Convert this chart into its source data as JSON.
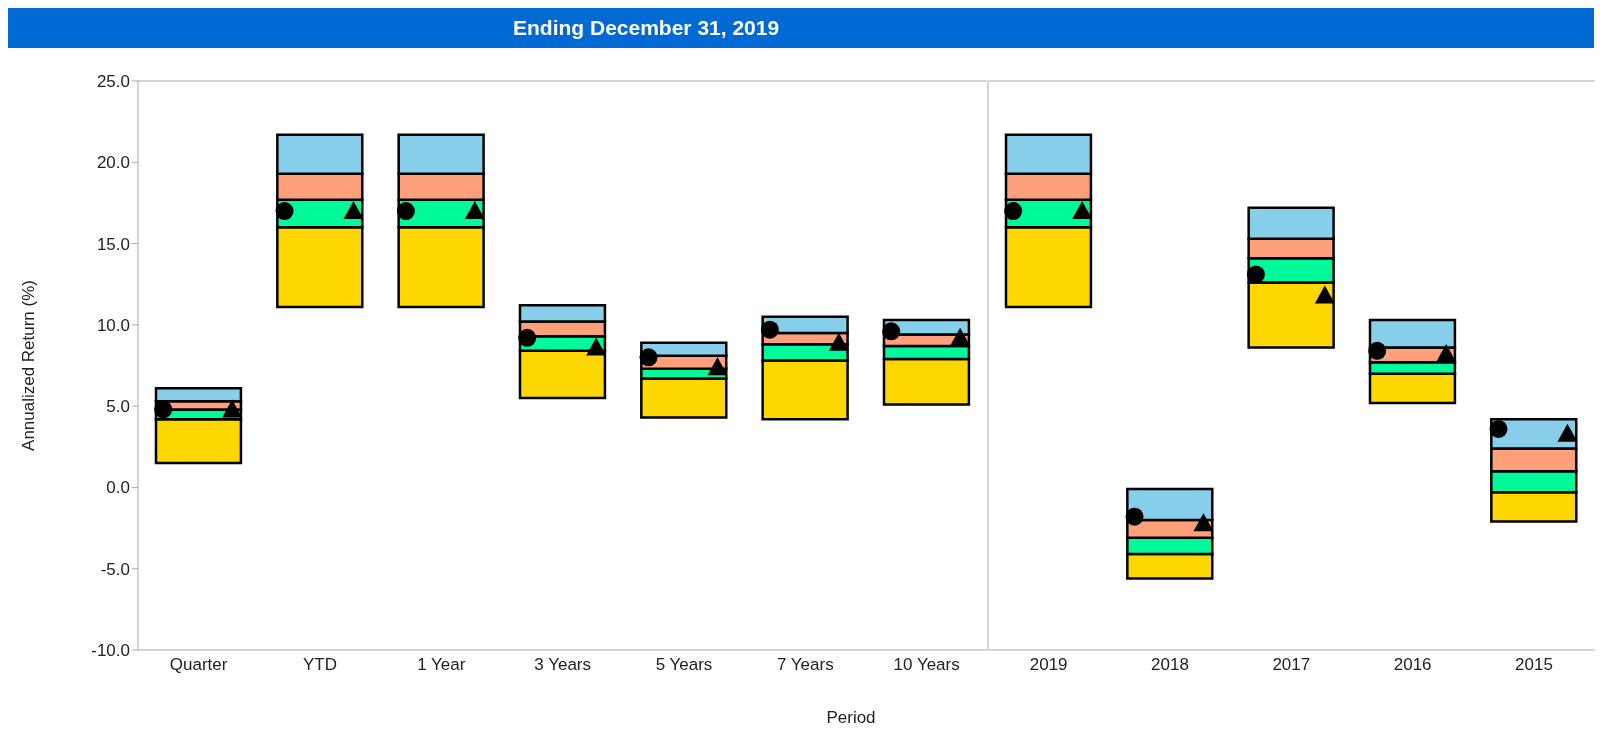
{
  "chart_data": [
    {
      "type": "bar",
      "title": "Ending December 31, 2019",
      "xlabel": "Period",
      "ylabel": "Annualized Return (%)",
      "categories": [
        "Quarter",
        "YTD",
        "1 Year",
        "3 Years",
        "5 Years",
        "7 Years",
        "10 Years"
      ],
      "series": [
        {
          "color": "#ffd700",
          "base": [
            1.5,
            11.1,
            11.1,
            5.5,
            4.3,
            4.2,
            5.1
          ],
          "values": [
            2.7,
            4.9,
            4.9,
            2.9,
            2.4,
            3.6,
            2.8
          ]
        },
        {
          "color": "#00fa9a",
          "base": [
            4.2,
            16.0,
            16.0,
            8.4,
            6.7,
            7.8,
            7.9
          ],
          "values": [
            0.6,
            1.7,
            1.7,
            0.9,
            0.6,
            1.0,
            0.8
          ]
        },
        {
          "color": "#ffa07a",
          "base": [
            4.8,
            17.7,
            17.7,
            9.3,
            7.3,
            8.8,
            8.7
          ],
          "values": [
            0.5,
            1.6,
            1.6,
            0.9,
            0.8,
            0.7,
            0.7
          ]
        },
        {
          "color": "#87ceeb",
          "base": [
            5.3,
            19.3,
            19.3,
            10.2,
            8.1,
            9.5,
            9.4
          ],
          "values": [
            0.8,
            2.4,
            2.4,
            1.0,
            0.8,
            1.0,
            0.9
          ]
        },
        {
          "type": "scatter",
          "marker": "circle",
          "color": "#000000",
          "values": [
            4.8,
            17.0,
            17.0,
            9.2,
            8.0,
            9.7,
            9.6
          ]
        },
        {
          "type": "scatter",
          "marker": "triangle",
          "color": "#000000",
          "values": [
            4.8,
            17.0,
            17.0,
            8.6,
            7.4,
            8.9,
            9.2
          ]
        }
      ],
      "ylim": [
        -10,
        25
      ],
      "yticks": [
        {
          "value": -10,
          "label": "-10.0"
        },
        {
          "value": -5,
          "label": "-5.0"
        },
        {
          "value": 0,
          "label": "0.0"
        },
        {
          "value": 5,
          "label": "5.0"
        },
        {
          "value": 10,
          "label": "10.0"
        },
        {
          "value": 15,
          "label": "15.0"
        },
        {
          "value": 20,
          "label": "20.0"
        },
        {
          "value": 25,
          "label": "25.0"
        }
      ]
    },
    {
      "type": "bar",
      "categories": [
        "2019",
        "2018",
        "2017",
        "2016",
        "2015"
      ],
      "series": [
        {
          "color": "#ffd700",
          "base": [
            11.1,
            -5.6,
            8.6,
            5.2,
            -2.1
          ],
          "values": [
            4.9,
            1.5,
            4.0,
            1.8,
            1.8
          ]
        },
        {
          "color": "#00fa9a",
          "base": [
            16.0,
            -4.1,
            12.6,
            7.0,
            -0.3
          ],
          "values": [
            1.7,
            1.0,
            1.5,
            0.7,
            1.3
          ]
        },
        {
          "color": "#ffa07a",
          "base": [
            17.7,
            -3.1,
            14.1,
            7.7,
            1.0
          ],
          "values": [
            1.6,
            1.1,
            1.2,
            0.9,
            1.4
          ]
        },
        {
          "color": "#87ceeb",
          "base": [
            19.3,
            -2.0,
            15.3,
            8.6,
            2.4
          ],
          "values": [
            2.4,
            1.9,
            1.9,
            1.7,
            1.8
          ]
        },
        {
          "type": "scatter",
          "marker": "circle",
          "color": "#000000",
          "values": [
            17.0,
            -1.8,
            13.1,
            8.4,
            3.6
          ]
        },
        {
          "type": "scatter",
          "marker": "triangle",
          "color": "#000000",
          "values": [
            17.0,
            -2.2,
            11.8,
            8.2,
            3.3
          ]
        }
      ],
      "ylim": [
        -10,
        25
      ],
      "tick_labels": "x"
    }
  ]
}
